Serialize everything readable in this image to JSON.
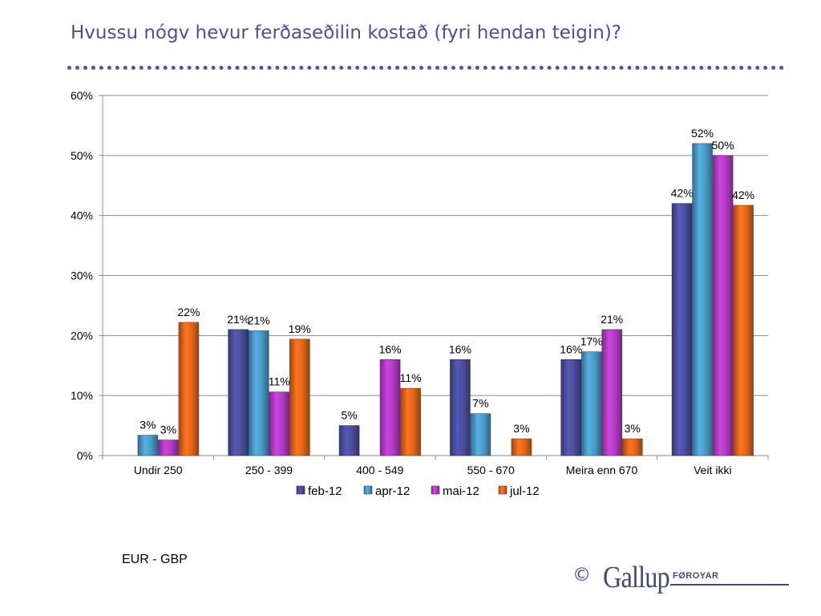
{
  "page": {
    "title": "Hvussu nógv hevur ferðaseðilin kostað (fyri hendan teigin)?",
    "footnote": "EUR - GBP",
    "logo": {
      "copyright": "©",
      "brand": "Gallup",
      "subbrand": "FØROYAR"
    }
  },
  "chart_data": {
    "type": "bar",
    "title": "",
    "xlabel": "",
    "ylabel": "",
    "ylim": [
      0,
      60
    ],
    "yticks": [
      "0%",
      "10%",
      "20%",
      "30%",
      "40%",
      "50%",
      "60%"
    ],
    "grid": true,
    "legend": "bottom",
    "categories": [
      "Undir 250",
      "250 - 399",
      "400 - 549",
      "550 - 670",
      "Meira enn 670",
      "Veit ikki"
    ],
    "series": [
      {
        "name": "feb-12",
        "color": "#4b4e9e",
        "values": [
          0,
          21,
          5,
          16,
          16,
          42
        ],
        "labels": [
          "",
          "21%",
          "5%",
          "16%",
          "16%",
          "42%"
        ]
      },
      {
        "name": "apr-12",
        "color": "#4a9ac8",
        "values": [
          3.4,
          20.8,
          0,
          7,
          17.3,
          52
        ],
        "labels": [
          "3%",
          "21%",
          "",
          "7%",
          "17%",
          "52%"
        ]
      },
      {
        "name": "mai-12",
        "color": "#b23bc4",
        "values": [
          2.6,
          10.6,
          16,
          0,
          21,
          50
        ],
        "labels": [
          "3%",
          "11%",
          "16%",
          "",
          "21%",
          "50%"
        ]
      },
      {
        "name": "jul-12",
        "color": "#e2661b",
        "values": [
          22.2,
          19.4,
          11.2,
          2.8,
          2.8,
          41.7
        ],
        "labels": [
          "22%",
          "19%",
          "11%",
          "3%",
          "3%",
          "42%"
        ]
      }
    ]
  }
}
